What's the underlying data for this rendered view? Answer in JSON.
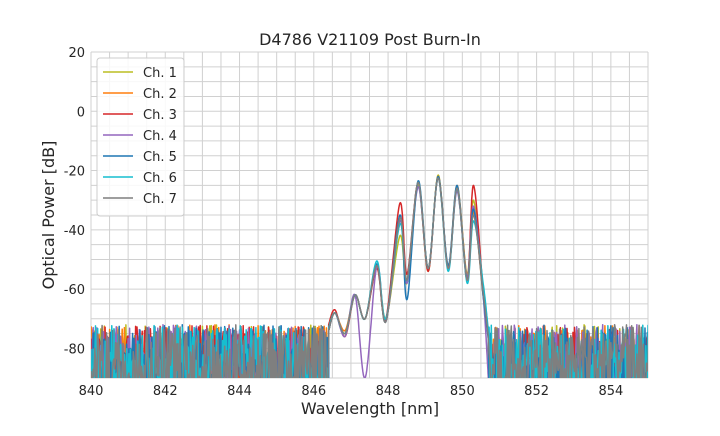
{
  "chart_data": {
    "type": "line",
    "title": "D4786 V21109 Post Burn-In",
    "xlabel": "Wavelength [nm]",
    "ylabel": "Optical Power [dB]",
    "xlim": [
      840,
      855
    ],
    "ylim": [
      -90,
      20
    ],
    "xticks": [
      840,
      842,
      844,
      846,
      848,
      850,
      852,
      854
    ],
    "yticks": [
      -80,
      -60,
      -40,
      -20,
      0,
      20
    ],
    "grid": true,
    "legend_position": "top-left",
    "noise_floor_db": {
      "min": -90,
      "max": -72
    },
    "x": [
      846.4,
      846.57,
      846.84,
      847.11,
      847.38,
      847.7,
      847.94,
      848.32,
      848.51,
      848.81,
      849.08,
      849.35,
      849.62,
      849.86,
      850.13,
      850.3,
      850.56,
      850.7
    ],
    "series": [
      {
        "name": "Ch. 1",
        "color": "#bcbd22",
        "y": [
          -74,
          -68,
          -75,
          -62,
          -70,
          -52,
          -70,
          -42,
          -58,
          -25,
          -54,
          -21.5,
          -53,
          -26,
          -55,
          -30,
          -60,
          -76
        ]
      },
      {
        "name": "Ch. 2",
        "color": "#ff7f0e",
        "y": [
          -73,
          -68,
          -74,
          -62,
          -70,
          -52,
          -71,
          -36,
          -57,
          -24,
          -53,
          -22,
          -53,
          -25,
          -56,
          -34,
          -62,
          -76
        ]
      },
      {
        "name": "Ch. 3",
        "color": "#d62728",
        "y": [
          -72,
          -67,
          -76,
          -62,
          -70,
          -53,
          -70,
          -31,
          -55,
          -24,
          -54,
          -22,
          -53,
          -26,
          -57,
          -25,
          -60,
          -75
        ]
      },
      {
        "name": "Ch. 4",
        "color": "#9467bd",
        "y": [
          -74,
          -68,
          -76,
          -62,
          -90,
          -52,
          -71,
          -37,
          -58,
          -25.5,
          -53,
          -22.5,
          -53,
          -27,
          -56,
          -32,
          -62,
          -90
        ]
      },
      {
        "name": "Ch. 5",
        "color": "#1f77b4",
        "y": [
          -74,
          -68,
          -75,
          -62,
          -70,
          -51.5,
          -71,
          -35,
          -63.5,
          -23.5,
          -53,
          -22,
          -52,
          -25,
          -57,
          -33,
          -62,
          -77
        ]
      },
      {
        "name": "Ch. 6",
        "color": "#17becf",
        "y": [
          -73,
          -68,
          -75,
          -62,
          -70,
          -50.5,
          -70,
          -38,
          -57,
          -24,
          -53,
          -22.5,
          -54,
          -26,
          -58,
          -37,
          -58,
          -74
        ]
      },
      {
        "name": "Ch. 7",
        "color": "#7f7f7f",
        "y": [
          -74,
          -68,
          -75,
          -62,
          -70,
          -52,
          -71,
          -36,
          -57,
          -24,
          -53,
          -22.5,
          -53,
          -26,
          -57,
          -35,
          -61,
          -76
        ]
      }
    ]
  }
}
